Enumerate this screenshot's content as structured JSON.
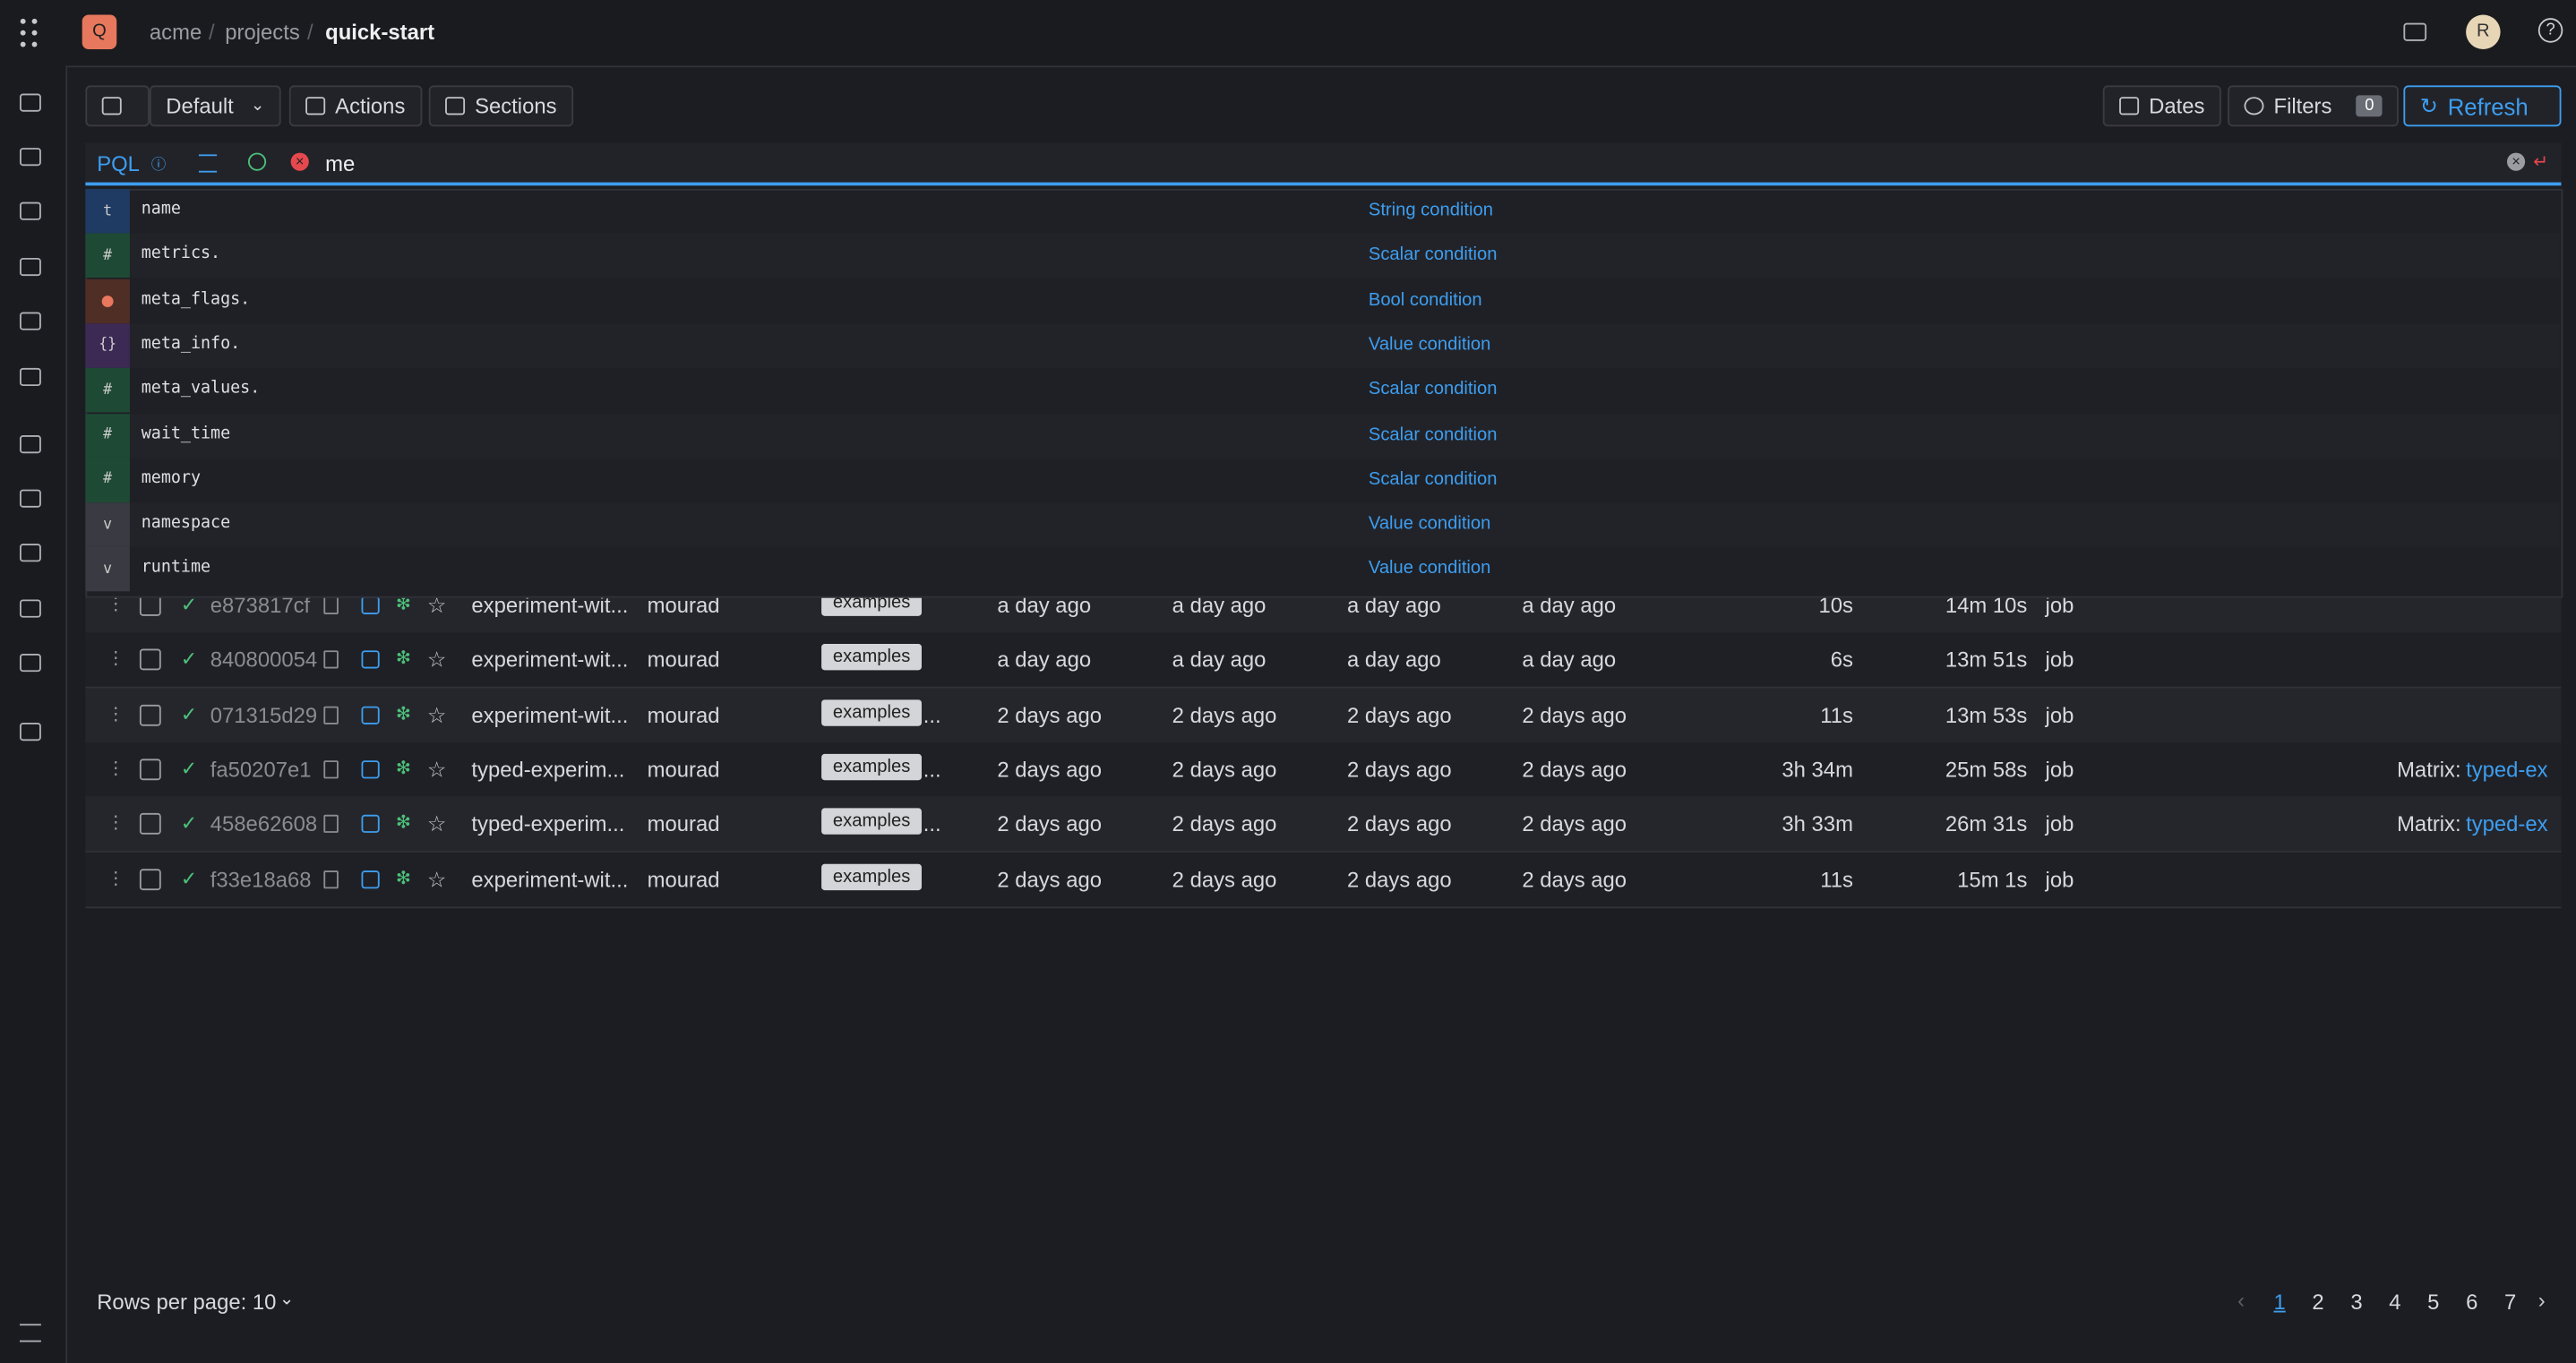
{
  "breadcrumb": {
    "avatar": "Q",
    "org": "acme",
    "section": "projects",
    "project": "quick-start",
    "user": "R"
  },
  "toolbar": {
    "preset": "Default",
    "actions": "Actions",
    "sections": "Sections",
    "dates": "Dates",
    "filters": "Filters",
    "filter_count": "0",
    "refresh": "Refresh"
  },
  "search": {
    "mode": "PQL",
    "query": "me"
  },
  "suggestions": [
    {
      "icon": "t",
      "field": "name",
      "kind": "String condition"
    },
    {
      "icon": "#",
      "field": "metrics.",
      "kind": "Scalar condition"
    },
    {
      "field": "meta_flags.",
      "kind": "Bool condition"
    },
    {
      "icon": "{}",
      "field": "meta_info.",
      "kind": "Value condition"
    },
    {
      "icon": "#",
      "field": "meta_values.",
      "kind": "Scalar condition"
    },
    {
      "icon": "#",
      "field": "wait_time",
      "kind": "Scalar condition"
    },
    {
      "icon": "#",
      "field": "memory",
      "kind": "Scalar condition"
    },
    {
      "icon": "v",
      "field": "namespace",
      "kind": "Value condition"
    },
    {
      "icon": "v",
      "field": "runtime",
      "kind": "Value condition"
    }
  ],
  "table": {
    "rows": [
      {
        "uuid": "e873817cf",
        "name": "experiment-wit...",
        "user": "mourad",
        "tag": "examples",
        "created": "a day ago",
        "updated": "a day ago",
        "started": "a day ago",
        "finished": "a day ago",
        "wait": "10s",
        "duration": "14m 10s",
        "kind": "job"
      },
      {
        "uuid": "840800054",
        "name": "experiment-wit...",
        "user": "mourad",
        "tag": "examples",
        "created": "a day ago",
        "updated": "a day ago",
        "started": "a day ago",
        "finished": "a day ago",
        "wait": "6s",
        "duration": "13m 51s",
        "kind": "job"
      },
      {
        "uuid": "071315d29",
        "name": "experiment-wit...",
        "user": "mourad",
        "tag": "examples",
        "more": "...",
        "created": "2 days ago",
        "updated": "2 days ago",
        "started": "2 days ago",
        "finished": "2 days ago",
        "wait": "11s",
        "duration": "13m 53s",
        "kind": "job"
      },
      {
        "uuid": "fa50207e1",
        "name": "typed-experim...",
        "user": "mourad",
        "tag": "examples",
        "more": "...",
        "created": "2 days ago",
        "updated": "2 days ago",
        "started": "2 days ago",
        "finished": "2 days ago",
        "wait": "3h 34m",
        "duration": "25m 58s",
        "kind": "job",
        "pipeline_label": "Matrix:",
        "pipeline": "typed-ex"
      },
      {
        "uuid": "458e62608",
        "name": "typed-experim...",
        "user": "mourad",
        "tag": "examples",
        "more": "...",
        "created": "2 days ago",
        "updated": "2 days ago",
        "started": "2 days ago",
        "finished": "2 days ago",
        "wait": "3h 33m",
        "duration": "26m 31s",
        "kind": "job",
        "pipeline_label": "Matrix:",
        "pipeline": "typed-ex"
      },
      {
        "uuid": "f33e18a68",
        "name": "experiment-wit...",
        "user": "mourad",
        "tag": "examples",
        "created": "2 days ago",
        "updated": "2 days ago",
        "started": "2 days ago",
        "finished": "2 days ago",
        "wait": "11s",
        "duration": "15m 1s",
        "kind": "job"
      }
    ]
  },
  "pagination": {
    "rows_per_page": "Rows per page: 10",
    "pages": [
      "1",
      "2",
      "3",
      "4",
      "5",
      "6",
      "7"
    ]
  }
}
